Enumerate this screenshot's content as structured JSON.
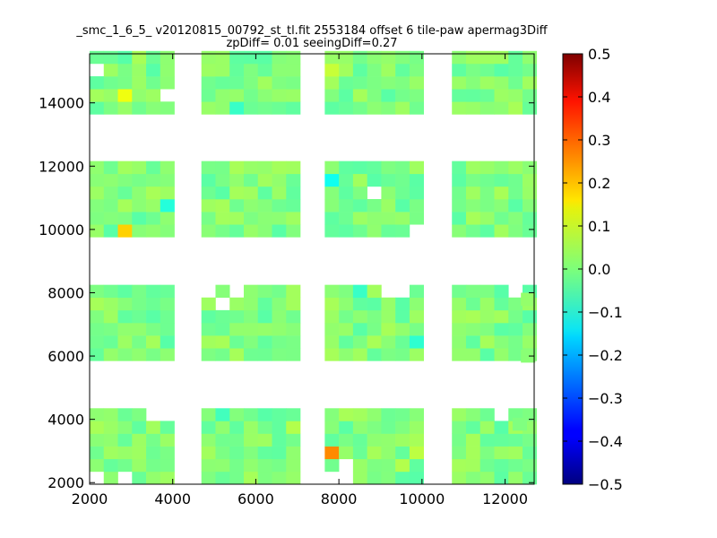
{
  "chart_data": {
    "type": "heatmap",
    "title_line1": "_smc_1_6_5_ v20120815_00792_st_tl.fit 2553184 offset 6 tile-paw apermag3Diff",
    "title_line2": "zpDiff= 0.01 seeingDiff=0.27",
    "xlim": [
      2000,
      12700
    ],
    "ylim": [
      1950,
      15550
    ],
    "xticks": [
      2000,
      4000,
      6000,
      8000,
      10000,
      12000
    ],
    "yticks": [
      2000,
      4000,
      6000,
      8000,
      10000,
      12000,
      14000
    ],
    "cell_size": {
      "dx": 340,
      "dy": 400
    },
    "colorbar": {
      "vmin": -0.5,
      "vmax": 0.5,
      "colormap": "jet",
      "ticks": [
        0.5,
        0.4,
        0.3,
        0.2,
        0.1,
        0.0,
        -0.1,
        -0.2,
        -0.3,
        -0.4,
        -0.5
      ],
      "tick_labels": [
        "0.5",
        "0.4",
        "0.3",
        "0.2",
        "0.1",
        "0.0",
        "−0.1",
        "−0.2",
        "−0.3",
        "−0.4",
        "−0.5"
      ]
    },
    "x_ranges": [
      [
        2000,
        3950
      ],
      [
        4690,
        6960
      ],
      [
        7660,
        9890
      ],
      [
        10720,
        12700
      ]
    ],
    "y_ranges": [
      [
        1950,
        4100
      ],
      [
        5850,
        8000
      ],
      [
        9760,
        11880
      ],
      [
        13640,
        15550
      ]
    ],
    "cells": [
      {
        "x": 2700,
        "y": 9900,
        "v": 0.17
      },
      {
        "x": 2800,
        "y": 14200,
        "v": 0.11
      },
      {
        "x": 4200,
        "y": 3450,
        "v": 0.08
      },
      {
        "x": 7800,
        "y": 15350,
        "v": 0.07
      },
      {
        "x": 7800,
        "y": 2950,
        "v": 0.24
      },
      {
        "x": 6800,
        "y": 3450,
        "v": 0.05
      },
      {
        "x": 3600,
        "y": 10950,
        "v": -0.09
      },
      {
        "x": 7800,
        "y": 11550,
        "v": -0.11
      },
      {
        "x": 8800,
        "y": 5550,
        "v": -0.12
      },
      {
        "x": 4200,
        "y": 14600,
        "v": -0.06
      },
      {
        "x": 5100,
        "y": 3850,
        "v": -0.06
      },
      {
        "x": 8600,
        "y": 7900,
        "v": -0.07
      },
      {
        "x": 9800,
        "y": 6500,
        "v": -0.08
      },
      {
        "x": 5500,
        "y": 13900,
        "v": -0.07
      },
      {
        "x": 9800,
        "y": 2800,
        "v": 0.06
      },
      {
        "x": 9400,
        "y": 2300,
        "v": 0.05
      },
      {
        "x": 11900,
        "y": 11200,
        "v": 0.04
      },
      {
        "x": 11300,
        "y": 7200,
        "v": 0.04
      }
    ],
    "missing_cells": [
      {
        "x": 2100,
        "y": 15350
      },
      {
        "x": 3700,
        "y": 14200
      },
      {
        "x": 3900,
        "y": 14200
      },
      {
        "x": 9000,
        "y": 11050
      },
      {
        "x": 9800,
        "y": 9850
      },
      {
        "x": 2100,
        "y": 2150
      },
      {
        "x": 2700,
        "y": 2150
      },
      {
        "x": 3400,
        "y": 3850
      },
      {
        "x": 3700,
        "y": 3850
      },
      {
        "x": 8100,
        "y": 2550
      },
      {
        "x": 7800,
        "y": 2150
      },
      {
        "x": 8200,
        "y": 2150
      },
      {
        "x": 9300,
        "y": 7900
      },
      {
        "x": 9600,
        "y": 7900
      },
      {
        "x": 4700,
        "y": 7900
      },
      {
        "x": 5300,
        "y": 7900
      },
      {
        "x": 5100,
        "y": 7550
      },
      {
        "x": 11900,
        "y": 3850
      },
      {
        "x": 12300,
        "y": 7900
      }
    ],
    "isolated_cells": [
      {
        "x": 12550,
        "y": 7800,
        "v": 0.02
      },
      {
        "x": 12550,
        "y": 6000,
        "v": 0.01
      },
      {
        "x": 12350,
        "y": 3850,
        "v": 0.0
      }
    ]
  }
}
